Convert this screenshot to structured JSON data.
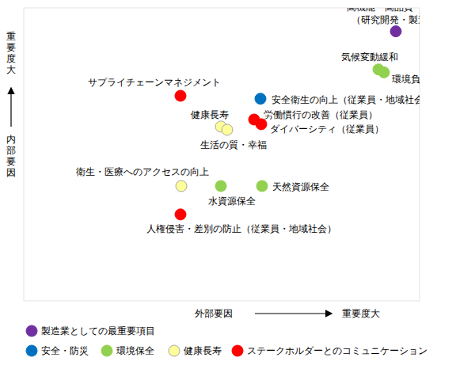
{
  "chart_data": {
    "type": "scatter",
    "xlabel": "外部要因",
    "ylabel": "内部要因",
    "axis_direction_label": "重要度大",
    "xlim": [
      0,
      10
    ],
    "ylim": [
      0,
      10
    ],
    "xticks": [
      0,
      2.5,
      5,
      7.5,
      10
    ],
    "yticks": [
      0,
      2,
      4,
      6,
      8,
      10
    ],
    "grid": true,
    "tick_labels": false,
    "legend": "bottom",
    "groups": [
      {
        "name": "製造業としての最重要項目",
        "color": "#7030a0"
      },
      {
        "name": "安全・防災",
        "color": "#0070c0"
      },
      {
        "name": "環境保全",
        "color": "#92d050"
      },
      {
        "name": "健康長寿",
        "color": "#ffff99"
      },
      {
        "name": "ステークホルダーとのコミュニケーション",
        "color": "#ff0000"
      }
    ],
    "points": [
      {
        "name": "高機能・高品質・安定供給\n（研究開発・製造技術）",
        "group": "製造業としての最重要項目",
        "x": 9.4,
        "y": 9.2
      },
      {
        "name": "気候変動緩和",
        "group": "環境保全",
        "x": 8.96,
        "y": 7.9
      },
      {
        "name": "環境負荷低減",
        "group": "環境保全",
        "x": 9.1,
        "y": 7.8
      },
      {
        "name": "サプライチェーンマネジメント",
        "group": "ステークホルダーとのコミュニケーション",
        "x": 3.96,
        "y": 7.0
      },
      {
        "name": "安全衛生の向上（従業員・地域社会）",
        "group": "安全・防災",
        "x": 5.98,
        "y": 6.9
      },
      {
        "name": "健康長寿",
        "group": "健康長寿",
        "x": 4.98,
        "y": 5.95
      },
      {
        "name": "生活の質・幸福",
        "group": "健康長寿",
        "x": 5.14,
        "y": 5.84
      },
      {
        "name": "労働慣行の改善（従業員）",
        "group": "ステークホルダーとのコミュニケーション",
        "x": 5.82,
        "y": 6.19
      },
      {
        "name": "ダイバーシティ（従業員）",
        "group": "ステークホルダーとのコミュニケーション",
        "x": 6.0,
        "y": 6.03
      },
      {
        "name": "衛生・医療へのアクセスの向上",
        "group": "健康長寿",
        "x": 3.98,
        "y": 3.92
      },
      {
        "name": "水資源保全",
        "group": "環境保全",
        "x": 4.98,
        "y": 3.92
      },
      {
        "name": "天然資源保全",
        "group": "環境保全",
        "x": 6.02,
        "y": 3.92
      },
      {
        "name": "人権侵害・差別の防止（従業員・地域社会）",
        "group": "ステークホルダーとのコミュニケーション",
        "x": 3.96,
        "y": 2.95
      }
    ]
  }
}
